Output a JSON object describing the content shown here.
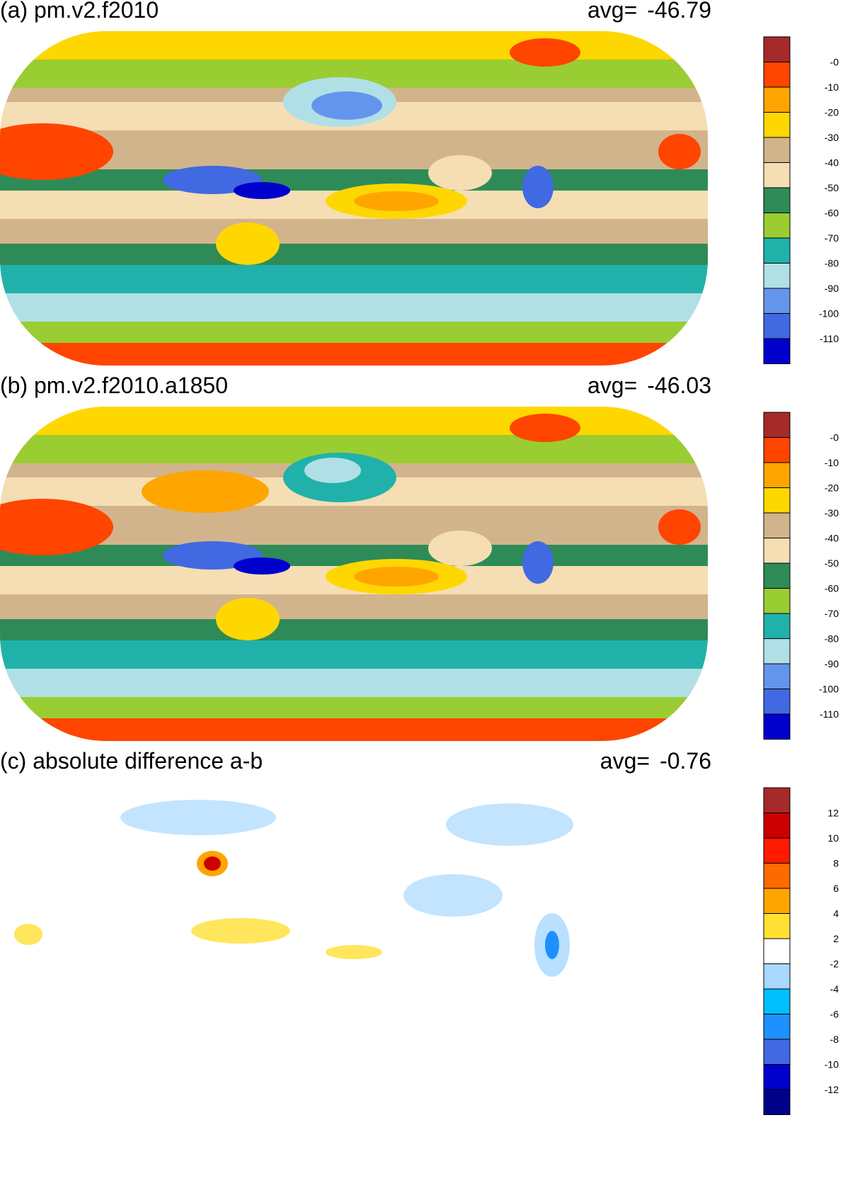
{
  "panels": [
    {
      "id": "a",
      "title": "(a) pm.v2.f2010",
      "avg_label": "avg=",
      "avg_value": "-46.79",
      "colorbar": {
        "labels": [
          "-0",
          "-10",
          "-20",
          "-30",
          "-40",
          "-50",
          "-60",
          "-70",
          "-80",
          "-90",
          "-100",
          "-110"
        ],
        "colors": [
          "#a52a2a",
          "#ff4500",
          "#ffa500",
          "#ffd700",
          "#d2b48c",
          "#f5deb3",
          "#2e8b57",
          "#9acd32",
          "#20b2aa",
          "#b0e0e6",
          "#6495ed",
          "#4169e1",
          "#0000cd"
        ]
      }
    },
    {
      "id": "b",
      "title": "(b) pm.v2.f2010.a1850",
      "avg_label": "avg=",
      "avg_value": "-46.03",
      "colorbar": {
        "labels": [
          "-0",
          "-10",
          "-20",
          "-30",
          "-40",
          "-50",
          "-60",
          "-70",
          "-80",
          "-90",
          "-100",
          "-110"
        ],
        "colors": [
          "#a52a2a",
          "#ff4500",
          "#ffa500",
          "#ffd700",
          "#d2b48c",
          "#f5deb3",
          "#2e8b57",
          "#9acd32",
          "#20b2aa",
          "#b0e0e6",
          "#6495ed",
          "#4169e1",
          "#0000cd"
        ]
      }
    },
    {
      "id": "c",
      "title": "(c) absolute difference a-b",
      "avg_label": "avg=",
      "avg_value": "-0.76",
      "colorbar": {
        "labels": [
          "12",
          "10",
          "8",
          "6",
          "4",
          "2",
          "-2",
          "-4",
          "-6",
          "-8",
          "-10",
          "-12"
        ],
        "colors": [
          "#a52a2a",
          "#cc0000",
          "#ff1a00",
          "#ff6a00",
          "#ffa500",
          "#ffe033",
          "#ffffff",
          "#a8d8ff",
          "#00bfff",
          "#1e90ff",
          "#4169e1",
          "#0000cd",
          "#00008b"
        ]
      }
    }
  ]
}
